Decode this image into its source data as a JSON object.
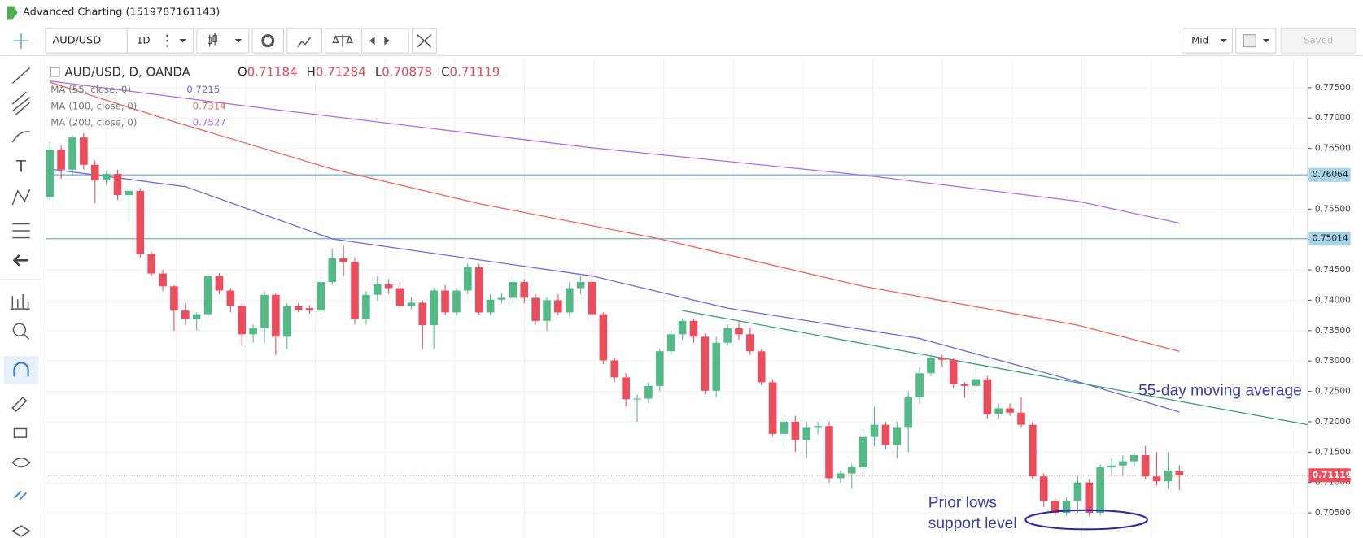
{
  "window": {
    "title": "Advanced Charting (1519787161143)"
  },
  "toolbar": {
    "symbol": "AUD/USD",
    "interval": "1D",
    "price_type": "Mid",
    "saved": "Saved"
  },
  "chart_data": {
    "type": "candlestick",
    "title": "AUD/USD, D, OANDA",
    "legend": {
      "open_label": "O",
      "open": 0.71184,
      "high_label": "H",
      "high": 0.71284,
      "low_label": "L",
      "low": 0.70878,
      "close_label": "C",
      "close": 0.71119
    },
    "up_color": "#53b987",
    "down_color": "#eb4d5c",
    "open": [
      0.757,
      0.7648,
      0.7615,
      0.7668,
      0.7623,
      0.7597,
      0.7608,
      0.7573,
      0.758,
      0.7476,
      0.7444,
      0.7423,
      0.7383,
      0.7369,
      0.7377,
      0.744,
      0.7416,
      0.7391,
      0.7344,
      0.7354,
      0.7409,
      0.734,
      0.739,
      0.7387,
      0.7383,
      0.743,
      0.7469,
      0.7463,
      0.7369,
      0.7409,
      0.7426,
      0.742,
      0.7391,
      0.7396,
      0.7359,
      0.7416,
      0.738,
      0.7416,
      0.7454,
      0.738,
      0.7401,
      0.7404,
      0.743,
      0.7404,
      0.7366,
      0.74,
      0.738,
      0.742,
      0.743,
      0.7377,
      0.7301,
      0.7273,
      0.7237,
      0.7238,
      0.7259,
      0.7316,
      0.7344,
      0.7366,
      0.734,
      0.7251,
      0.733,
      0.7354,
      0.7344,
      0.7316,
      0.7265,
      0.718,
      0.72,
      0.717,
      0.719,
      0.7193,
      0.7107,
      0.7115,
      0.7125,
      0.7175,
      0.7195,
      0.7162,
      0.719,
      0.724,
      0.728,
      0.7305,
      0.7302,
      0.7262,
      0.7259,
      0.727,
      0.7212,
      0.7222,
      0.7215,
      0.7195,
      0.711,
      0.707,
      0.705,
      0.707,
      0.71,
      0.705,
      0.7125,
      0.7128,
      0.7135,
      0.7145,
      0.711,
      0.7102,
      0.71184
    ],
    "high": [
      0.766,
      0.7655,
      0.7672,
      0.7675,
      0.763,
      0.7612,
      0.7615,
      0.759,
      0.7585,
      0.748,
      0.745,
      0.7425,
      0.7395,
      0.738,
      0.7445,
      0.7445,
      0.742,
      0.7395,
      0.736,
      0.7415,
      0.7412,
      0.7395,
      0.7395,
      0.7392,
      0.744,
      0.7485,
      0.749,
      0.747,
      0.7415,
      0.744,
      0.7435,
      0.743,
      0.7405,
      0.74,
      0.742,
      0.7425,
      0.742,
      0.746,
      0.746,
      0.741,
      0.7412,
      0.744,
      0.7435,
      0.741,
      0.7405,
      0.741,
      0.743,
      0.744,
      0.745,
      0.738,
      0.7305,
      0.728,
      0.7245,
      0.7265,
      0.732,
      0.735,
      0.737,
      0.737,
      0.7345,
      0.734,
      0.736,
      0.7365,
      0.7355,
      0.732,
      0.727,
      0.721,
      0.721,
      0.72,
      0.72,
      0.72,
      0.712,
      0.713,
      0.7185,
      0.7225,
      0.72,
      0.72,
      0.725,
      0.729,
      0.731,
      0.731,
      0.7305,
      0.7265,
      0.732,
      0.7275,
      0.723,
      0.723,
      0.724,
      0.72,
      0.7115,
      0.7075,
      0.7075,
      0.711,
      0.7105,
      0.713,
      0.714,
      0.7145,
      0.715,
      0.716,
      0.715,
      0.715,
      0.71284
    ],
    "low": [
      0.7565,
      0.76,
      0.7605,
      0.7615,
      0.756,
      0.759,
      0.7565,
      0.753,
      0.747,
      0.744,
      0.7415,
      0.735,
      0.736,
      0.735,
      0.737,
      0.741,
      0.738,
      0.7325,
      0.733,
      0.733,
      0.731,
      0.732,
      0.738,
      0.7378,
      0.7375,
      0.7425,
      0.744,
      0.736,
      0.736,
      0.74,
      0.741,
      0.7385,
      0.7385,
      0.732,
      0.732,
      0.7375,
      0.7375,
      0.741,
      0.7375,
      0.7375,
      0.7395,
      0.7395,
      0.7395,
      0.736,
      0.735,
      0.7375,
      0.7375,
      0.741,
      0.737,
      0.7295,
      0.7265,
      0.7225,
      0.72,
      0.723,
      0.725,
      0.731,
      0.7335,
      0.733,
      0.7245,
      0.724,
      0.7325,
      0.7335,
      0.731,
      0.726,
      0.7175,
      0.716,
      0.715,
      0.714,
      0.718,
      0.71,
      0.71,
      0.709,
      0.7115,
      0.716,
      0.7155,
      0.714,
      0.715,
      0.723,
      0.7275,
      0.729,
      0.7255,
      0.724,
      0.725,
      0.7205,
      0.7205,
      0.721,
      0.719,
      0.7105,
      0.706,
      0.7045,
      0.7045,
      0.705,
      0.7045,
      0.7045,
      0.711,
      0.711,
      0.7125,
      0.7105,
      0.7095,
      0.709,
      0.70878
    ],
    "close": [
      0.7648,
      0.7615,
      0.7668,
      0.7623,
      0.7597,
      0.7608,
      0.7573,
      0.758,
      0.7476,
      0.7444,
      0.7423,
      0.7383,
      0.7369,
      0.7377,
      0.744,
      0.7416,
      0.7391,
      0.7344,
      0.7354,
      0.7409,
      0.734,
      0.739,
      0.7384,
      0.7383,
      0.743,
      0.7469,
      0.7463,
      0.7369,
      0.7409,
      0.7426,
      0.742,
      0.7391,
      0.7396,
      0.7359,
      0.7416,
      0.738,
      0.7416,
      0.7454,
      0.738,
      0.7401,
      0.7404,
      0.743,
      0.7404,
      0.7366,
      0.74,
      0.738,
      0.742,
      0.743,
      0.7377,
      0.7301,
      0.7273,
      0.7237,
      0.7238,
      0.7259,
      0.7316,
      0.7344,
      0.7366,
      0.734,
      0.7251,
      0.733,
      0.7354,
      0.7344,
      0.7316,
      0.7265,
      0.718,
      0.72,
      0.717,
      0.719,
      0.7193,
      0.7107,
      0.7115,
      0.7125,
      0.7175,
      0.7195,
      0.7162,
      0.719,
      0.724,
      0.728,
      0.7305,
      0.7302,
      0.7262,
      0.7259,
      0.727,
      0.7212,
      0.7222,
      0.7215,
      0.7195,
      0.711,
      0.707,
      0.705,
      0.707,
      0.71,
      0.705,
      0.7125,
      0.7128,
      0.7135,
      0.7145,
      0.711,
      0.7102,
      0.712,
      0.71119
    ],
    "moving_averages": [
      {
        "name": "MA (55, close, 0)",
        "value": 0.7215,
        "color": "#6a6ad8",
        "x": [
          0,
          12,
          25,
          48,
          60,
          77,
          91,
          100
        ],
        "values": [
          0.7616,
          0.7587,
          0.7501,
          0.744,
          0.7387,
          0.7337,
          0.7266,
          0.7216
        ]
      },
      {
        "name": "MA (100, close, 0)",
        "value": 0.7314,
        "color": "#e8665f",
        "x": [
          0,
          11,
          25,
          38,
          54,
          72,
          91,
          100
        ],
        "values": [
          0.7759,
          0.7694,
          0.7616,
          0.7559,
          0.7501,
          0.7423,
          0.7359,
          0.7316
        ]
      },
      {
        "name": "MA (200, close, 0)",
        "value": 0.7527,
        "color": "#b06ae0",
        "x": [
          0,
          19,
          48,
          72,
          91,
          100
        ],
        "values": [
          0.7761,
          0.7716,
          0.7651,
          0.7606,
          0.7563,
          0.7527
        ]
      }
    ],
    "trendline": {
      "color": "#3f9a7a",
      "x": [
        56,
        111.4
      ],
      "values": [
        0.7383,
        0.7195
      ]
    },
    "hlines": [
      {
        "value": 0.76064,
        "label": "0.76064"
      },
      {
        "value": 0.75014,
        "label": "0.75014"
      }
    ],
    "last_price": {
      "value": 0.71119,
      "label": "0.71119"
    },
    "ylim": [
      0.70086,
      0.77986
    ],
    "yticks": [
      {
        "value": 0.775,
        "label": "0.77500"
      },
      {
        "value": 0.77,
        "label": "0.77000"
      },
      {
        "value": 0.765,
        "label": "0.76500"
      },
      {
        "value": 0.76,
        "label": "0.76000"
      },
      {
        "value": 0.755,
        "label": "0.75500"
      },
      {
        "value": 0.75,
        "label": "0.75000"
      },
      {
        "value": 0.745,
        "label": "0.74500"
      },
      {
        "value": 0.74,
        "label": "0.74000"
      },
      {
        "value": 0.735,
        "label": "0.73500"
      },
      {
        "value": 0.73,
        "label": "0.73000"
      },
      {
        "value": 0.725,
        "label": "0.72500"
      },
      {
        "value": 0.72,
        "label": "0.72000"
      },
      {
        "value": 0.715,
        "label": "0.71500"
      },
      {
        "value": 0.71,
        "label": "0.71000"
      },
      {
        "value": 0.705,
        "label": "0.70500"
      }
    ],
    "grid": true,
    "annotations": [
      {
        "text": "55-day moving average"
      },
      {
        "text": "Prior lows"
      },
      {
        "text": "support level"
      }
    ]
  }
}
